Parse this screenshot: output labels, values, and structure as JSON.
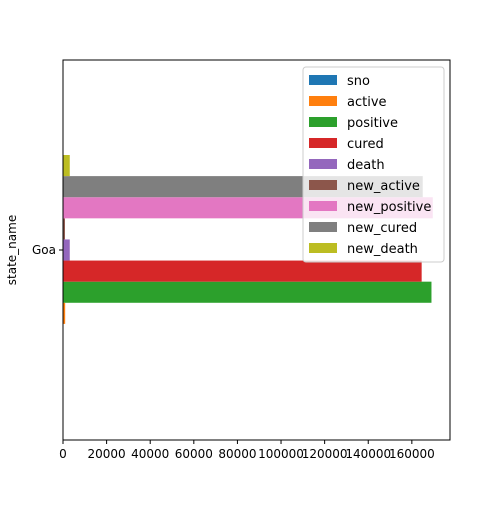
{
  "chart_data": {
    "type": "bar",
    "orientation": "horizontal",
    "categories": [
      "Goa"
    ],
    "ylabel": "state_name",
    "xlabel": "",
    "xlim": [
      0,
      177500
    ],
    "xticks": [
      0,
      20000,
      40000,
      60000,
      80000,
      100000,
      120000,
      140000,
      160000
    ],
    "grid": false,
    "legend_position": "upper right",
    "series": [
      {
        "name": "sno",
        "color": "#1f77b4",
        "values": [
          10
        ]
      },
      {
        "name": "active",
        "color": "#ff7f0e",
        "values": [
          1000
        ]
      },
      {
        "name": "positive",
        "color": "#2ca02c",
        "values": [
          169000
        ]
      },
      {
        "name": "cured",
        "color": "#d62728",
        "values": [
          164500
        ]
      },
      {
        "name": "death",
        "color": "#9467bd",
        "values": [
          3100
        ]
      },
      {
        "name": "new_active",
        "color": "#8c564b",
        "values": [
          900
        ]
      },
      {
        "name": "new_positive",
        "color": "#e377c2",
        "values": [
          169600
        ]
      },
      {
        "name": "new_cured",
        "color": "#7f7f7f",
        "values": [
          165000
        ]
      },
      {
        "name": "new_death",
        "color": "#bcbd22",
        "values": [
          3100
        ]
      }
    ]
  }
}
